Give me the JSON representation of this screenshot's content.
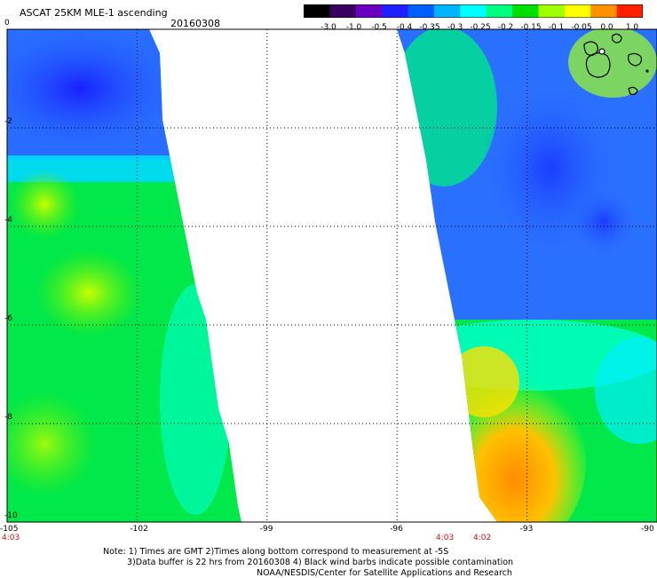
{
  "header": {
    "title": "ASCAT 25KM MLE-1 ascending",
    "date": "20160308"
  },
  "colorbar": {
    "labels": [
      "-3.0",
      "-1.0",
      "-0.5",
      "-0.4",
      "-0.35",
      "-0.3",
      "-0.25",
      "-0.2",
      "-0.15",
      "-0.1",
      "-0.05",
      "0.0",
      "1.0"
    ],
    "colors": [
      "#000000",
      "#3a005e",
      "#6a00c0",
      "#2020ff",
      "#0060ff",
      "#00b4ff",
      "#00ffff",
      "#00ff80",
      "#00e000",
      "#a0ff00",
      "#ffff00",
      "#ff9000",
      "#ff2000"
    ]
  },
  "map": {
    "lon_min": -105,
    "lon_max": -90,
    "lat_min": -10,
    "lat_max": 0,
    "x_ticks": [
      "-105",
      "-102",
      "-99",
      "-96",
      "-93",
      "-90"
    ],
    "y_ticks": [
      "0",
      "-2",
      "-4",
      "-6",
      "-8",
      "-10"
    ],
    "time_labels": [
      "4:03",
      "4:03",
      "4:02"
    ]
  },
  "notes": {
    "line1": "Note: 1) Times are GMT 2)Times along bottom correspond to measurement at -5S",
    "line2": "3)Data buffer is 22 hrs from 20160308 4) Black wind barbs indicate possible contamination",
    "line3": "NOAA/NESDIS/Center for Satellite Applications and Research"
  }
}
